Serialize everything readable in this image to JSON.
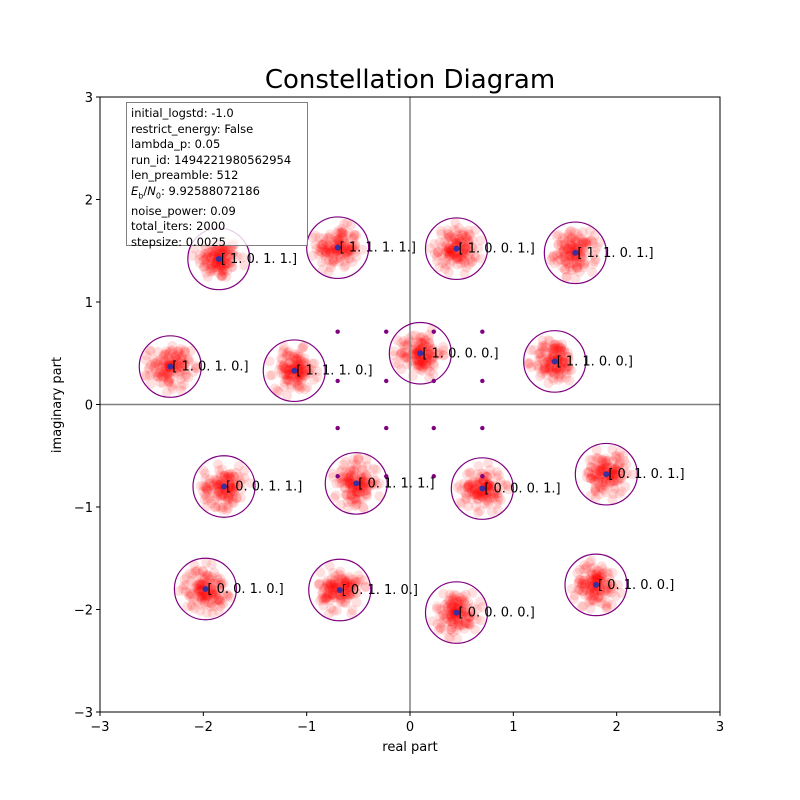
{
  "chart_data": {
    "type": "scatter",
    "title": "Constellation Diagram",
    "xlabel": "real part",
    "ylabel": "imaginary part",
    "xlim": [
      -3,
      3
    ],
    "ylim": [
      -3,
      3
    ],
    "xticks": [
      -3,
      -2,
      -1,
      0,
      1,
      2,
      3
    ],
    "yticks": [
      -3,
      -2,
      -1,
      0,
      1,
      2,
      3
    ],
    "grid": false,
    "colors": {
      "noise_cloud": "#ff0000",
      "symbol_point": "#3b2fa0",
      "circle": "#800080",
      "preamble_point": "#800080",
      "axis_line": "#808080"
    },
    "info_box": {
      "position": "top-left",
      "lines": [
        "initial_logstd: -1.0",
        "restrict_energy: False",
        "lambda_p: 0.05",
        "run_id: 1494221980562954",
        "len_preamble: 512",
        "E_b/N_0: 9.92588072186",
        "noise_power: 0.09",
        "total_iters: 2000",
        "stepsize: 0.0025"
      ]
    },
    "symbols": [
      {
        "x": -1.85,
        "y": 1.42,
        "label": "[ 1.  0.  1.  1.]"
      },
      {
        "x": -0.7,
        "y": 1.53,
        "label": "[ 1.  1.  1.  1.]"
      },
      {
        "x": 0.45,
        "y": 1.52,
        "label": "[ 1.  0.  0.  1.]"
      },
      {
        "x": 1.6,
        "y": 1.48,
        "label": "[ 1.  1.  0.  1.]"
      },
      {
        "x": -2.32,
        "y": 0.37,
        "label": "[ 1.  0.  1.  0.]"
      },
      {
        "x": -1.12,
        "y": 0.33,
        "label": "[ 1.  1.  1.  0.]"
      },
      {
        "x": 0.1,
        "y": 0.5,
        "label": "[ 1.  0.  0.  0.]"
      },
      {
        "x": 1.4,
        "y": 0.42,
        "label": "[ 1.  1.  0.  0.]"
      },
      {
        "x": -1.8,
        "y": -0.8,
        "label": "[ 0.  0.  1.  1.]"
      },
      {
        "x": -0.52,
        "y": -0.77,
        "label": "[ 0.  1.  1.  1.]"
      },
      {
        "x": 0.7,
        "y": -0.82,
        "label": "[ 0.  0.  0.  1.]"
      },
      {
        "x": 1.9,
        "y": -0.68,
        "label": "[ 0.  1.  0.  1.]"
      },
      {
        "x": -1.98,
        "y": -1.8,
        "label": "[ 0.  0.  1.  0.]"
      },
      {
        "x": -0.68,
        "y": -1.81,
        "label": "[ 0.  1.  1.  0.]"
      },
      {
        "x": 0.45,
        "y": -2.03,
        "label": "[ 0.  0.  0.  0.]"
      },
      {
        "x": 1.8,
        "y": -1.76,
        "label": "[ 0.  1.  0.  0.]"
      }
    ],
    "circle_radius": 0.3,
    "noise_std": 0.1,
    "preamble_points": [
      {
        "x": -0.7,
        "y": 0.71
      },
      {
        "x": -0.23,
        "y": 0.71
      },
      {
        "x": 0.23,
        "y": 0.71
      },
      {
        "x": 0.7,
        "y": 0.71
      },
      {
        "x": -0.7,
        "y": 0.23
      },
      {
        "x": -0.23,
        "y": 0.23
      },
      {
        "x": 0.23,
        "y": 0.23
      },
      {
        "x": 0.7,
        "y": 0.23
      },
      {
        "x": -0.7,
        "y": -0.23
      },
      {
        "x": -0.23,
        "y": -0.23
      },
      {
        "x": 0.23,
        "y": -0.23
      },
      {
        "x": 0.7,
        "y": -0.23
      },
      {
        "x": -0.7,
        "y": -0.7
      },
      {
        "x": -0.23,
        "y": -0.7
      },
      {
        "x": 0.23,
        "y": -0.7
      },
      {
        "x": 0.7,
        "y": -0.7
      }
    ]
  }
}
